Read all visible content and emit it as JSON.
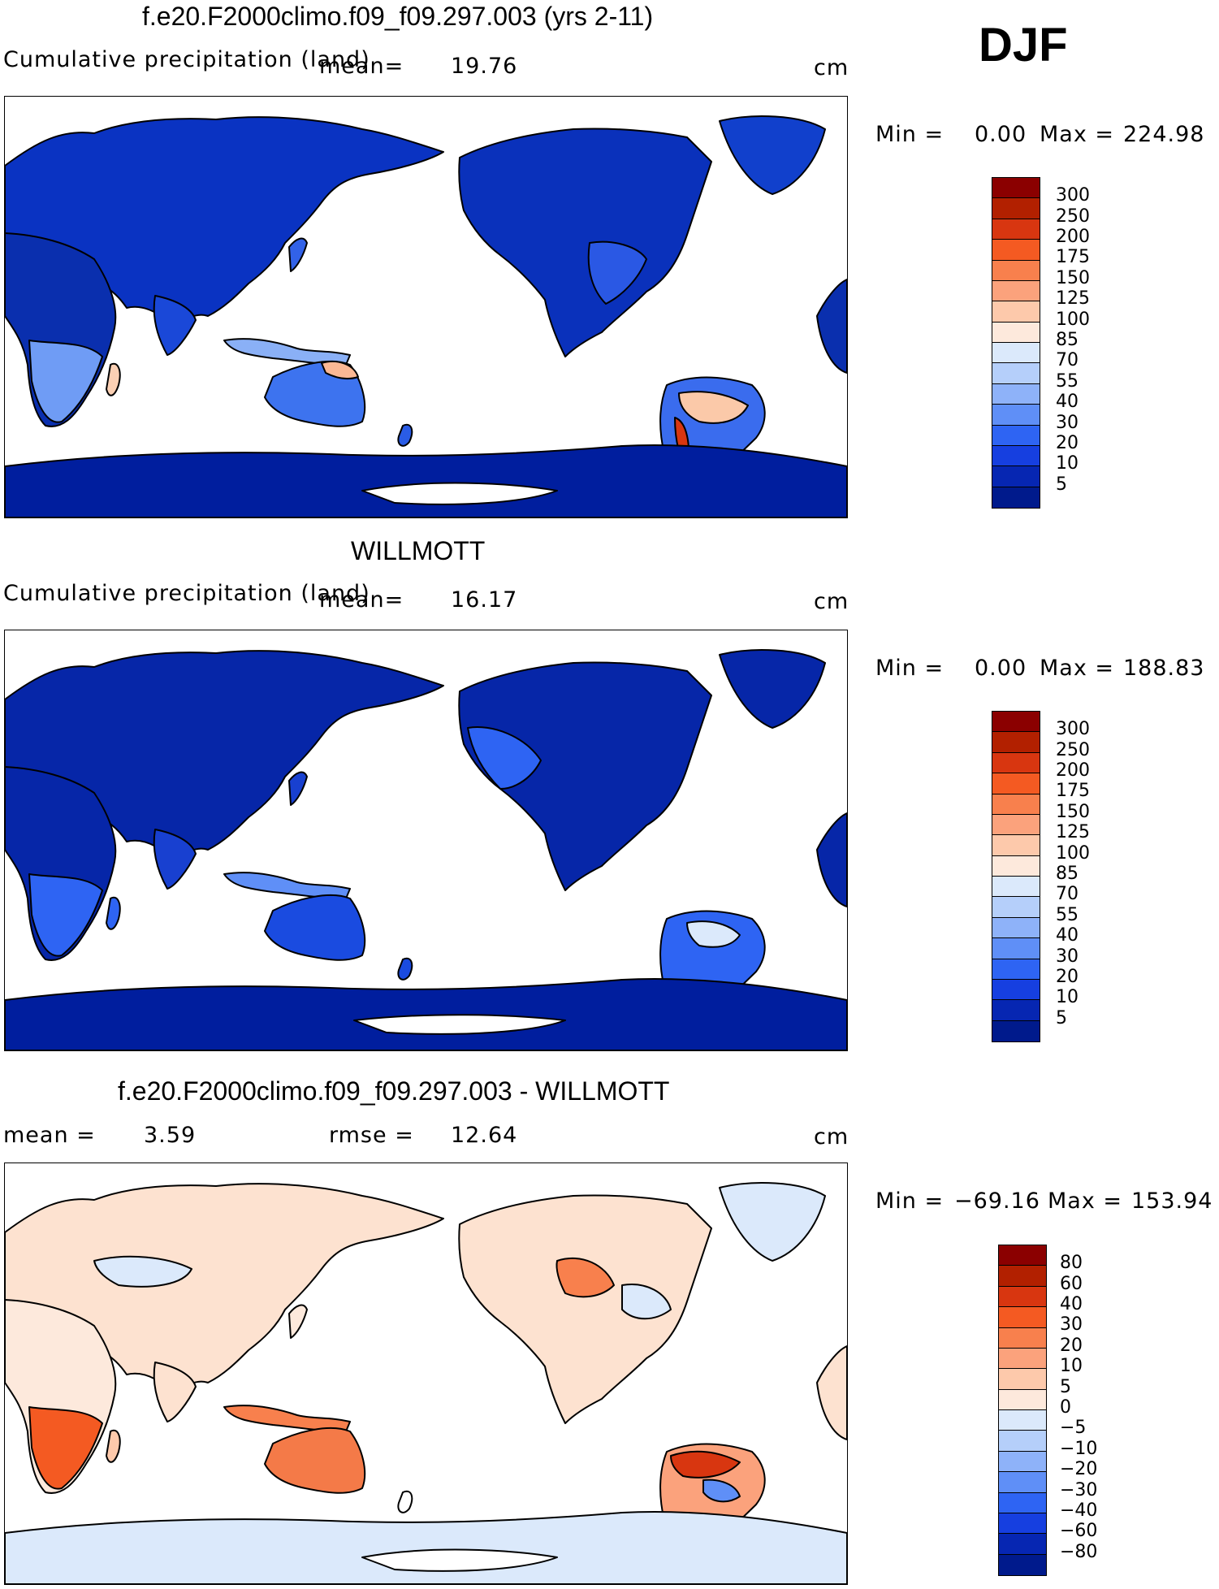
{
  "season": "DJF",
  "unit": "cm",
  "panels": [
    {
      "title": "f.e20.F2000climo.f09_f09.297.003 (yrs 2-11)",
      "variable": "Cumulative precipitation (land)",
      "mean_label": "mean=",
      "mean": "19.76",
      "min_label": "Min =",
      "min": "0.00",
      "max_label": "Max =",
      "max": "224.98",
      "map_kind": "absolute"
    },
    {
      "title": "WILLMOTT",
      "variable": "Cumulative precipitation (land)",
      "mean_label": "mean=",
      "mean": "16.17",
      "min_label": "Min =",
      "min": "0.00",
      "max_label": "Max =",
      "max": "188.83",
      "map_kind": "absolute"
    },
    {
      "title": "f.e20.F2000climo.f09_f09.297.003 - WILLMOTT",
      "mean_label": "mean =",
      "mean": "3.59",
      "rmse_label": "rmse =",
      "rmse": "12.64",
      "min_label": "Min =",
      "min": "−69.16",
      "max_label": "Max =",
      "max": "153.94",
      "map_kind": "difference"
    }
  ],
  "colorbar_abs": {
    "levels": [
      "300",
      "250",
      "200",
      "175",
      "150",
      "125",
      "100",
      "85",
      "70",
      "55",
      "40",
      "30",
      "20",
      "10",
      "5"
    ],
    "colors": [
      "#8b0000",
      "#b22000",
      "#d83610",
      "#f45a22",
      "#f8804d",
      "#fba27c",
      "#fdc9ab",
      "#fde9dc",
      "#dbe9fb",
      "#b5cffa",
      "#8eb2f9",
      "#5f8ff7",
      "#2e64f3",
      "#163fe0",
      "#0626b2",
      "#001a8c"
    ]
  },
  "colorbar_diff": {
    "levels": [
      "80",
      "60",
      "40",
      "30",
      "20",
      "10",
      "5",
      "0",
      "−5",
      "−10",
      "−20",
      "−30",
      "−40",
      "−60",
      "−80"
    ],
    "colors": [
      "#8b0000",
      "#b22000",
      "#d83610",
      "#f45a22",
      "#f8804d",
      "#fba27c",
      "#fdc9ab",
      "#fde9dc",
      "#dbe9fb",
      "#b5cffa",
      "#8eb2f9",
      "#5f8ff7",
      "#2e64f3",
      "#163fe0",
      "#0626b2",
      "#001a8c"
    ]
  }
}
